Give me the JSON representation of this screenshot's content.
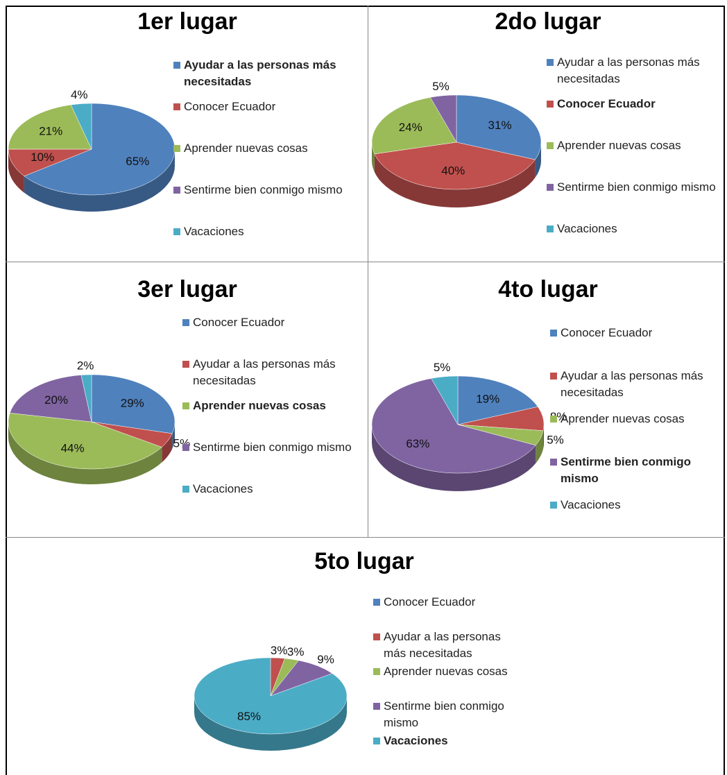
{
  "chart_data": [
    {
      "type": "pie",
      "title": "1er lugar",
      "categories": [
        "Ayudar a las personas más necesitadas",
        "Conocer Ecuador",
        "Aprender nuevas cosas",
        "Sentirme bien conmigo mismo",
        "Vacaciones"
      ],
      "values": [
        65,
        10,
        21,
        0,
        4
      ],
      "value_labels": [
        "65%",
        "10%",
        "21%",
        null,
        "4%"
      ],
      "colors": [
        "#4f81bd",
        "#c0504d",
        "#9bbb59",
        "#8064a2",
        "#4bacc6"
      ],
      "highlight": 0
    },
    {
      "type": "pie",
      "title": "2do lugar",
      "categories": [
        "Ayudar a las personas más necesitadas",
        "Conocer Ecuador",
        "Aprender nuevas cosas",
        "Sentirme bien conmigo mismo",
        "Vacaciones"
      ],
      "values": [
        31,
        40,
        24,
        5,
        0
      ],
      "value_labels": [
        "31%",
        "40%",
        "24%",
        "5%",
        null
      ],
      "colors": [
        "#4f81bd",
        "#c0504d",
        "#9bbb59",
        "#8064a2",
        "#4bacc6"
      ],
      "highlight": 1
    },
    {
      "type": "pie",
      "title": "3er lugar",
      "categories": [
        "Conocer Ecuador",
        "Ayudar a las personas más necesitadas",
        "Aprender nuevas cosas",
        "Sentirme bien conmigo mismo",
        "Vacaciones"
      ],
      "values": [
        29,
        5,
        44,
        20,
        2
      ],
      "value_labels": [
        "29%",
        "5%",
        "44%",
        "20%",
        "2%"
      ],
      "colors": [
        "#4f81bd",
        "#c0504d",
        "#9bbb59",
        "#8064a2",
        "#4bacc6"
      ],
      "highlight": 2
    },
    {
      "type": "pie",
      "title": "4to lugar",
      "categories": [
        "Conocer Ecuador",
        "Ayudar a las personas más necesitadas",
        "Aprender nuevas cosas",
        "Sentirme bien conmigo mismo",
        "Vacaciones"
      ],
      "values": [
        19,
        8,
        5,
        63,
        5
      ],
      "value_labels": [
        "19%",
        "8%",
        "5%",
        "63%",
        "5%"
      ],
      "colors": [
        "#4f81bd",
        "#c0504d",
        "#9bbb59",
        "#8064a2",
        "#4bacc6"
      ],
      "highlight": 3
    },
    {
      "type": "pie",
      "title": "5to lugar",
      "categories": [
        "Conocer Ecuador",
        "Ayudar a las personas más necesitadas",
        "Aprender nuevas cosas",
        "Sentirme bien conmigo mismo",
        "Vacaciones"
      ],
      "values": [
        0,
        3,
        3,
        9,
        85
      ],
      "value_labels": [
        null,
        "3%",
        "3%",
        "9%",
        "85%"
      ],
      "colors": [
        "#4f81bd",
        "#c0504d",
        "#9bbb59",
        "#8064a2",
        "#4bacc6"
      ],
      "highlight": 4
    }
  ]
}
